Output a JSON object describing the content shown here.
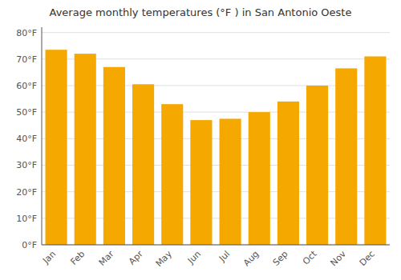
{
  "chart_data": {
    "type": "bar",
    "title": "Average monthly temperatures (°F ) in San Antonio Oeste",
    "categories": [
      "Jan",
      "Feb",
      "Mar",
      "Apr",
      "May",
      "Jun",
      "Jul",
      "Aug",
      "Sep",
      "Oct",
      "Nov",
      "Dec"
    ],
    "values": [
      73.5,
      72.0,
      67.0,
      60.5,
      53.0,
      47.0,
      47.5,
      50.0,
      54.0,
      60.0,
      66.5,
      71.0
    ],
    "color": "#F5A800",
    "ylim": [
      0,
      82
    ],
    "yticks": [
      {
        "value": 0,
        "label": "0°F"
      },
      {
        "value": 10,
        "label": "10°F"
      },
      {
        "value": 20,
        "label": "20°F"
      },
      {
        "value": 30,
        "label": "30°F"
      },
      {
        "value": 40,
        "label": "40°F"
      },
      {
        "value": 50,
        "label": "50°F"
      },
      {
        "value": 60,
        "label": "60°F"
      },
      {
        "value": 70,
        "label": "70°F"
      },
      {
        "value": 80,
        "label": "80°F"
      }
    ],
    "grid": true
  }
}
